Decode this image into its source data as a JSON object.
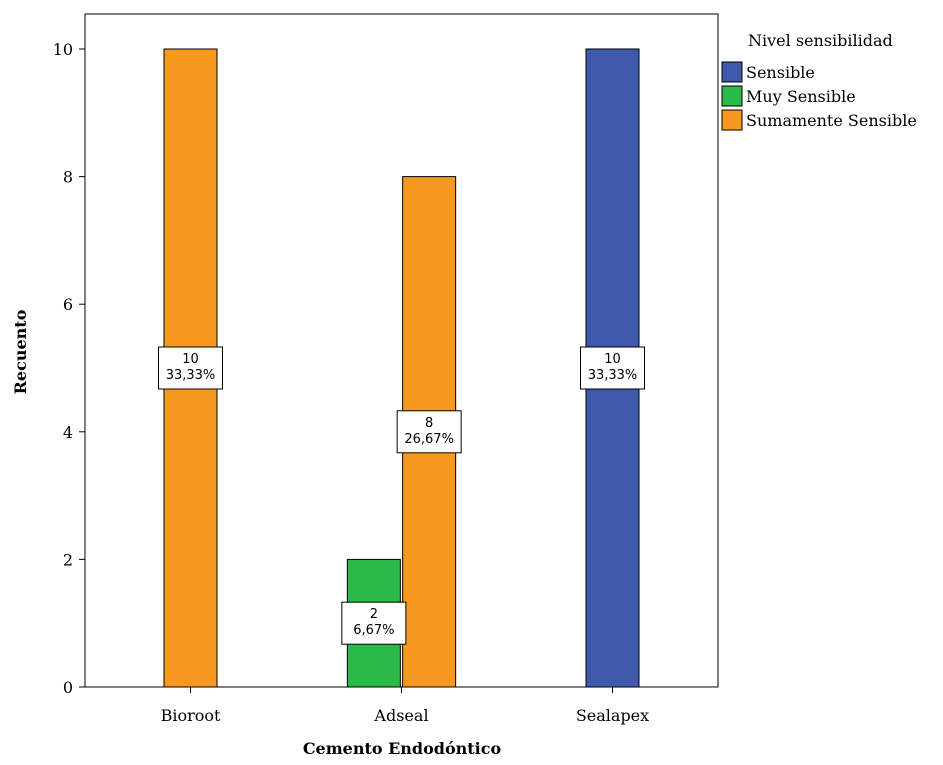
{
  "chart_data": {
    "type": "bar",
    "xlabel": "Cemento Endodóntico",
    "ylabel": "Recuento",
    "ylim": [
      0,
      10
    ],
    "yticks": [
      0,
      2,
      4,
      6,
      8,
      10
    ],
    "grid": false,
    "legend_position": "top-right",
    "legend_title": "Nivel sensibilidad",
    "categories": [
      "Bioroot",
      "Adseal",
      "Sealapex"
    ],
    "series": [
      {
        "name": "Sensible",
        "color": "#3E58AC",
        "values": [
          0,
          0,
          10
        ],
        "labels": [
          "",
          "",
          "10\n33,33%"
        ]
      },
      {
        "name": "Muy Sensible",
        "color": "#2DB84A",
        "values": [
          0,
          2,
          0
        ],
        "labels": [
          "",
          "2\n6,67%",
          ""
        ]
      },
      {
        "name": "Sumamente Sensible",
        "color": "#F7991F",
        "values": [
          10,
          8,
          0
        ],
        "labels": [
          "10\n33,33%",
          "8\n26,67%",
          ""
        ]
      }
    ]
  }
}
